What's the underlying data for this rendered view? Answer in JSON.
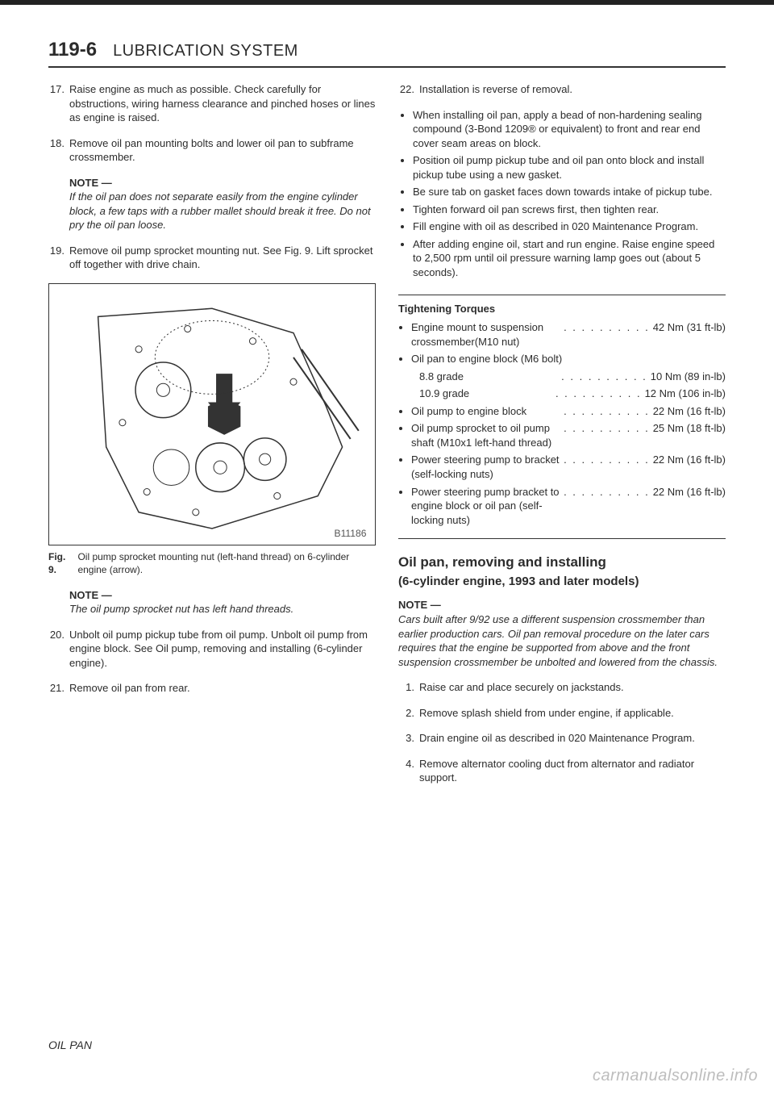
{
  "header": {
    "page_number": "119-6",
    "title": "LUBRICATION SYSTEM"
  },
  "left": {
    "steps": [
      {
        "n": "17.",
        "text": "Raise engine as much as possible. Check carefully for obstructions, wiring harness clearance and pinched hoses or lines as engine is raised."
      },
      {
        "n": "18.",
        "text": "Remove oil pan mounting bolts and lower oil pan to subframe crossmember."
      }
    ],
    "note1": {
      "label": "NOTE —",
      "text": "If the oil pan does not separate easily from the engine cylinder block, a few taps with a rubber mallet should break it free. Do not pry the oil pan loose."
    },
    "step19": {
      "n": "19.",
      "text": "Remove oil pump sprocket mounting nut. See Fig. 9. Lift sprocket off together with drive chain."
    },
    "fig": {
      "id": "B11186",
      "label": "Fig. 9.",
      "caption": "Oil pump sprocket mounting nut (left-hand thread) on 6-cylinder engine (arrow)."
    },
    "note2": {
      "label": "NOTE —",
      "text": "The oil pump sprocket nut has left hand threads."
    },
    "step20": {
      "n": "20.",
      "text": "Unbolt oil pump pickup tube from oil pump. Unbolt oil pump from engine block. See Oil pump, removing and installing (6-cylinder engine)."
    },
    "step21": {
      "n": "21.",
      "text": "Remove oil pan from rear."
    }
  },
  "right": {
    "step22": {
      "n": "22.",
      "text": "Installation is reverse of removal."
    },
    "bullets22": [
      "When installing oil pan, apply a bead of non-hardening sealing compound (3-Bond 1209® or equivalent) to front and rear end cover seam areas on block.",
      "Position oil pump pickup tube and oil pan onto block and install pickup tube using a new gasket.",
      "Be sure tab on gasket faces down towards intake of pickup tube.",
      "Tighten forward oil pan screws first, then tighten rear.",
      "Fill engine with oil as described in 020 Maintenance Program.",
      "After adding engine oil, start and run engine. Raise engine speed to 2,500 rpm until oil pressure warning lamp goes out (about 5 seconds)."
    ],
    "torques": {
      "title": "Tightening Torques",
      "rows": [
        {
          "l": "Engine mount to suspension crossmember(M10 nut)",
          "r": "42 Nm (31 ft-lb)"
        },
        {
          "l": "Oil pan to engine block (M6 bolt)",
          "r": ""
        },
        {
          "l": "8.8 grade",
          "r": "10 Nm (89 in-lb)",
          "indent": true
        },
        {
          "l": "10.9 grade",
          "r": "12 Nm (106 in-lb)",
          "indent": true
        },
        {
          "l": "Oil pump to engine block",
          "r": "22 Nm (16 ft-lb)"
        },
        {
          "l": "Oil pump sprocket to oil pump shaft (M10x1 left-hand thread)",
          "r": "25 Nm (18 ft-lb)"
        },
        {
          "l": "Power steering pump to bracket (self-locking nuts)",
          "r": "22 Nm (16 ft-lb)"
        },
        {
          "l": "Power steering pump bracket to engine block or oil pan (self-locking nuts)",
          "r": "22 Nm (16 ft-lb)"
        }
      ]
    },
    "section": {
      "h": "Oil pan, removing and installing",
      "sub": "(6-cylinder engine, 1993 and later models)"
    },
    "note3": {
      "label": "NOTE —",
      "text": "Cars built after 9/92 use a different suspension crossmember than earlier production cars. Oil pan removal procedure on the later cars requires that the engine be supported from above and the front suspension crossmember be unbolted and lowered from the chassis."
    },
    "steps2": [
      {
        "n": "1.",
        "text": "Raise car and place securely on jackstands."
      },
      {
        "n": "2.",
        "text": "Remove splash shield from under engine, if applicable."
      },
      {
        "n": "3.",
        "text": "Drain engine oil as described in 020 Maintenance Program."
      },
      {
        "n": "4.",
        "text": "Remove alternator cooling duct from alternator and radiator support."
      }
    ]
  },
  "footer": "OIL PAN",
  "watermark": "carmanualsonline.info"
}
